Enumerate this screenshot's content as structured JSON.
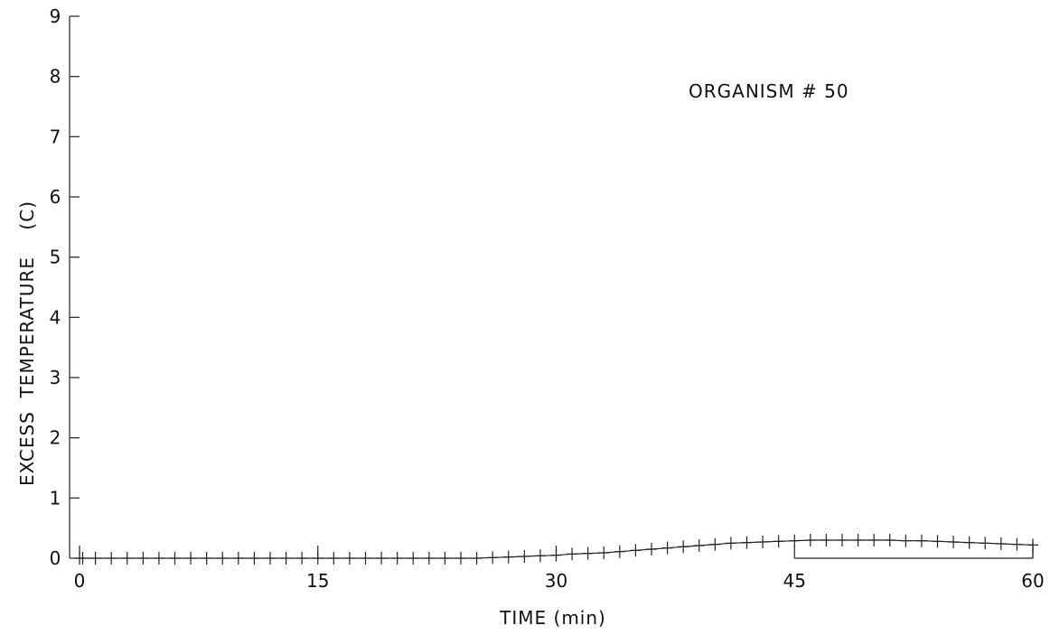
{
  "chart_data": {
    "type": "scatter",
    "title": "",
    "annotation": "ORGANISM # 50",
    "xlabel": "TIME (min)",
    "ylabel": "EXCESS TEMPERATURE (C)",
    "xlim": [
      0,
      60
    ],
    "ylim": [
      0,
      9
    ],
    "x_ticks": [
      0,
      15,
      30,
      45,
      60
    ],
    "y_ticks": [
      0,
      1,
      2,
      3,
      4,
      5,
      6,
      7,
      8,
      9
    ],
    "x_tick_labels": [
      "0",
      "15",
      "30",
      "45",
      "60"
    ],
    "y_tick_labels": [
      "0",
      "1",
      "2",
      "3",
      "4",
      "5",
      "6",
      "7",
      "8",
      "9"
    ],
    "grid": false,
    "marker": "plus",
    "series": [
      {
        "x": [
          0.0,
          0.2,
          1.0,
          2.0,
          3.0,
          4.0,
          5.0,
          6.0,
          7.0,
          8.0,
          9.0,
          10.0,
          11.0,
          12.0,
          13.0,
          14.0,
          15.0,
          16.0,
          17.0,
          18.0,
          19.0,
          20.0,
          21.0,
          22.0,
          23.0,
          24.0,
          25.0,
          26.0,
          27.0,
          28.0,
          29.0,
          30.0,
          31.0,
          32.0,
          33.0,
          34.0,
          35.0,
          36.0,
          37.0,
          38.0,
          39.0,
          40.0,
          41.0,
          42.0,
          43.0,
          44.0,
          45.0,
          46.0,
          47.0,
          48.0,
          49.0,
          50.0,
          51.0,
          52.0,
          53.0,
          54.0,
          55.0,
          56.0,
          57.0,
          58.0,
          59.0,
          60.0
        ],
        "y": [
          0.0,
          0.0,
          0.0,
          0.0,
          0.0,
          0.0,
          0.0,
          0.0,
          0.0,
          0.0,
          0.0,
          0.0,
          0.0,
          0.0,
          0.0,
          0.0,
          0.0,
          0.0,
          0.0,
          0.0,
          0.0,
          0.0,
          0.0,
          0.0,
          0.0,
          0.0,
          0.0,
          0.01,
          0.02,
          0.03,
          0.04,
          0.05,
          0.07,
          0.08,
          0.09,
          0.11,
          0.13,
          0.15,
          0.17,
          0.19,
          0.21,
          0.23,
          0.25,
          0.26,
          0.27,
          0.28,
          0.29,
          0.3,
          0.3,
          0.3,
          0.3,
          0.3,
          0.3,
          0.29,
          0.29,
          0.28,
          0.27,
          0.26,
          0.25,
          0.24,
          0.23,
          0.22
        ]
      }
    ]
  }
}
